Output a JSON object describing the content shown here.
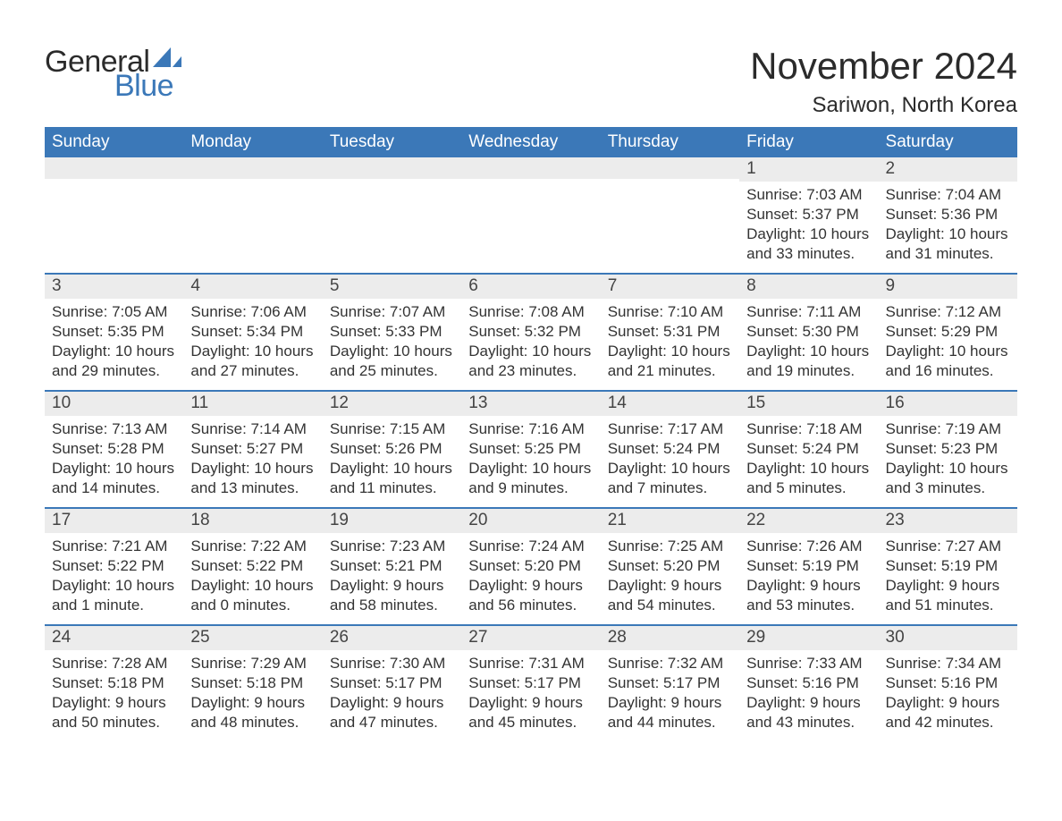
{
  "colors": {
    "header_bg": "#3b78b8",
    "header_text": "#ffffff",
    "daynum_bg": "#ececec",
    "daynum_text": "#444444",
    "body_text": "#333333",
    "separator": "#3b78b8",
    "page_bg": "#ffffff",
    "logo_blue": "#3b78b8",
    "logo_dark": "#2b2b2b"
  },
  "typography": {
    "month_title_fontsize": 42,
    "location_fontsize": 24,
    "dayheader_fontsize": 19,
    "daynum_fontsize": 19,
    "daydata_fontsize": 17,
    "font_family": "Arial"
  },
  "logo": {
    "text_general": "General",
    "text_blue": "Blue"
  },
  "title": {
    "month": "November 2024",
    "location": "Sariwon, North Korea"
  },
  "day_headers": [
    "Sunday",
    "Monday",
    "Tuesday",
    "Wednesday",
    "Thursday",
    "Friday",
    "Saturday"
  ],
  "weeks": [
    [
      {
        "day": "",
        "sunrise": "",
        "sunset": "",
        "daylight": ""
      },
      {
        "day": "",
        "sunrise": "",
        "sunset": "",
        "daylight": ""
      },
      {
        "day": "",
        "sunrise": "",
        "sunset": "",
        "daylight": ""
      },
      {
        "day": "",
        "sunrise": "",
        "sunset": "",
        "daylight": ""
      },
      {
        "day": "",
        "sunrise": "",
        "sunset": "",
        "daylight": ""
      },
      {
        "day": "1",
        "sunrise": "Sunrise: 7:03 AM",
        "sunset": "Sunset: 5:37 PM",
        "daylight": "Daylight: 10 hours and 33 minutes."
      },
      {
        "day": "2",
        "sunrise": "Sunrise: 7:04 AM",
        "sunset": "Sunset: 5:36 PM",
        "daylight": "Daylight: 10 hours and 31 minutes."
      }
    ],
    [
      {
        "day": "3",
        "sunrise": "Sunrise: 7:05 AM",
        "sunset": "Sunset: 5:35 PM",
        "daylight": "Daylight: 10 hours and 29 minutes."
      },
      {
        "day": "4",
        "sunrise": "Sunrise: 7:06 AM",
        "sunset": "Sunset: 5:34 PM",
        "daylight": "Daylight: 10 hours and 27 minutes."
      },
      {
        "day": "5",
        "sunrise": "Sunrise: 7:07 AM",
        "sunset": "Sunset: 5:33 PM",
        "daylight": "Daylight: 10 hours and 25 minutes."
      },
      {
        "day": "6",
        "sunrise": "Sunrise: 7:08 AM",
        "sunset": "Sunset: 5:32 PM",
        "daylight": "Daylight: 10 hours and 23 minutes."
      },
      {
        "day": "7",
        "sunrise": "Sunrise: 7:10 AM",
        "sunset": "Sunset: 5:31 PM",
        "daylight": "Daylight: 10 hours and 21 minutes."
      },
      {
        "day": "8",
        "sunrise": "Sunrise: 7:11 AM",
        "sunset": "Sunset: 5:30 PM",
        "daylight": "Daylight: 10 hours and 19 minutes."
      },
      {
        "day": "9",
        "sunrise": "Sunrise: 7:12 AM",
        "sunset": "Sunset: 5:29 PM",
        "daylight": "Daylight: 10 hours and 16 minutes."
      }
    ],
    [
      {
        "day": "10",
        "sunrise": "Sunrise: 7:13 AM",
        "sunset": "Sunset: 5:28 PM",
        "daylight": "Daylight: 10 hours and 14 minutes."
      },
      {
        "day": "11",
        "sunrise": "Sunrise: 7:14 AM",
        "sunset": "Sunset: 5:27 PM",
        "daylight": "Daylight: 10 hours and 13 minutes."
      },
      {
        "day": "12",
        "sunrise": "Sunrise: 7:15 AM",
        "sunset": "Sunset: 5:26 PM",
        "daylight": "Daylight: 10 hours and 11 minutes."
      },
      {
        "day": "13",
        "sunrise": "Sunrise: 7:16 AM",
        "sunset": "Sunset: 5:25 PM",
        "daylight": "Daylight: 10 hours and 9 minutes."
      },
      {
        "day": "14",
        "sunrise": "Sunrise: 7:17 AM",
        "sunset": "Sunset: 5:24 PM",
        "daylight": "Daylight: 10 hours and 7 minutes."
      },
      {
        "day": "15",
        "sunrise": "Sunrise: 7:18 AM",
        "sunset": "Sunset: 5:24 PM",
        "daylight": "Daylight: 10 hours and 5 minutes."
      },
      {
        "day": "16",
        "sunrise": "Sunrise: 7:19 AM",
        "sunset": "Sunset: 5:23 PM",
        "daylight": "Daylight: 10 hours and 3 minutes."
      }
    ],
    [
      {
        "day": "17",
        "sunrise": "Sunrise: 7:21 AM",
        "sunset": "Sunset: 5:22 PM",
        "daylight": "Daylight: 10 hours and 1 minute."
      },
      {
        "day": "18",
        "sunrise": "Sunrise: 7:22 AM",
        "sunset": "Sunset: 5:22 PM",
        "daylight": "Daylight: 10 hours and 0 minutes."
      },
      {
        "day": "19",
        "sunrise": "Sunrise: 7:23 AM",
        "sunset": "Sunset: 5:21 PM",
        "daylight": "Daylight: 9 hours and 58 minutes."
      },
      {
        "day": "20",
        "sunrise": "Sunrise: 7:24 AM",
        "sunset": "Sunset: 5:20 PM",
        "daylight": "Daylight: 9 hours and 56 minutes."
      },
      {
        "day": "21",
        "sunrise": "Sunrise: 7:25 AM",
        "sunset": "Sunset: 5:20 PM",
        "daylight": "Daylight: 9 hours and 54 minutes."
      },
      {
        "day": "22",
        "sunrise": "Sunrise: 7:26 AM",
        "sunset": "Sunset: 5:19 PM",
        "daylight": "Daylight: 9 hours and 53 minutes."
      },
      {
        "day": "23",
        "sunrise": "Sunrise: 7:27 AM",
        "sunset": "Sunset: 5:19 PM",
        "daylight": "Daylight: 9 hours and 51 minutes."
      }
    ],
    [
      {
        "day": "24",
        "sunrise": "Sunrise: 7:28 AM",
        "sunset": "Sunset: 5:18 PM",
        "daylight": "Daylight: 9 hours and 50 minutes."
      },
      {
        "day": "25",
        "sunrise": "Sunrise: 7:29 AM",
        "sunset": "Sunset: 5:18 PM",
        "daylight": "Daylight: 9 hours and 48 minutes."
      },
      {
        "day": "26",
        "sunrise": "Sunrise: 7:30 AM",
        "sunset": "Sunset: 5:17 PM",
        "daylight": "Daylight: 9 hours and 47 minutes."
      },
      {
        "day": "27",
        "sunrise": "Sunrise: 7:31 AM",
        "sunset": "Sunset: 5:17 PM",
        "daylight": "Daylight: 9 hours and 45 minutes."
      },
      {
        "day": "28",
        "sunrise": "Sunrise: 7:32 AM",
        "sunset": "Sunset: 5:17 PM",
        "daylight": "Daylight: 9 hours and 44 minutes."
      },
      {
        "day": "29",
        "sunrise": "Sunrise: 7:33 AM",
        "sunset": "Sunset: 5:16 PM",
        "daylight": "Daylight: 9 hours and 43 minutes."
      },
      {
        "day": "30",
        "sunrise": "Sunrise: 7:34 AM",
        "sunset": "Sunset: 5:16 PM",
        "daylight": "Daylight: 9 hours and 42 minutes."
      }
    ]
  ]
}
